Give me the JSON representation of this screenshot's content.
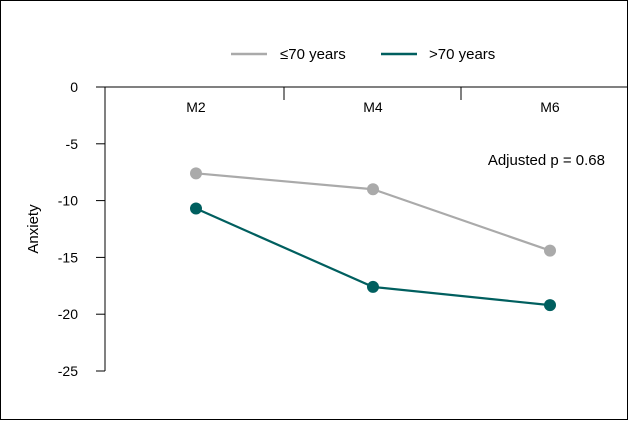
{
  "chart_data": {
    "type": "line",
    "categories": [
      "M2",
      "M4",
      "M6"
    ],
    "series": [
      {
        "name": "≤70 years",
        "color": "#aaaaaa",
        "values": [
          -7.6,
          -9.0,
          -14.4
        ]
      },
      {
        "name": ">70 years",
        "color": "#005f5f",
        "values": [
          -10.7,
          -17.6,
          -19.2
        ]
      }
    ],
    "title": "",
    "xlabel": "",
    "ylabel": "Anxiety",
    "ylim": [
      -25,
      0
    ],
    "yticks": [
      0,
      -5,
      -10,
      -15,
      -20,
      -25
    ],
    "x_axis_position": "top",
    "legend": "top-center",
    "grid": false,
    "annotation": "Adjusted p = 0.68"
  }
}
